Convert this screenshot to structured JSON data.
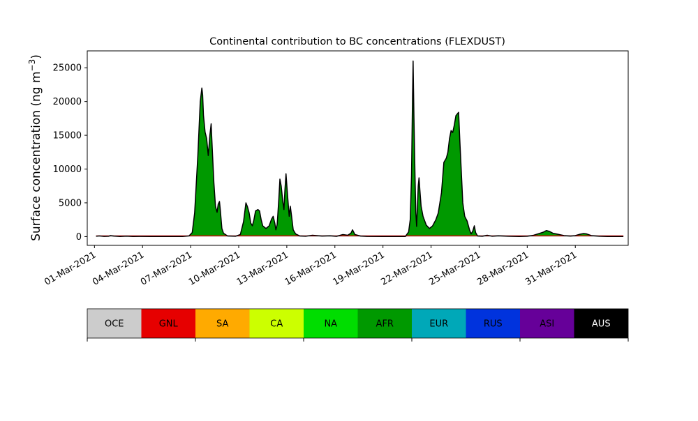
{
  "chart_data": {
    "type": "area",
    "title": "Continental contribution to BC concentrations (FLEXDUST)",
    "ylabel_main": "Surface concentration (ng m",
    "ylabel_exp": "−3",
    "ylabel_close": ")",
    "xlabel": "",
    "ylim": [
      -1300,
      27500
    ],
    "xlim_days": [
      -0.45,
      33.3
    ],
    "y_ticks": [
      0,
      5000,
      10000,
      15000,
      20000,
      25000
    ],
    "y_tick_labels": [
      "0",
      "5000",
      "10000",
      "15000",
      "20000",
      "25000"
    ],
    "x_ticks": [
      0,
      3,
      6,
      9,
      12,
      15,
      18,
      21,
      24,
      27,
      30
    ],
    "x_tick_labels": [
      "01-Mar-2021",
      "04-Mar-2021",
      "07-Mar-2021",
      "10-Mar-2021",
      "13-Mar-2021",
      "16-Mar-2021",
      "19-Mar-2021",
      "22-Mar-2021",
      "25-Mar-2021",
      "28-Mar-2021",
      "31-Mar-2021"
    ],
    "dominant_series": "AFR",
    "series_points": [
      [
        0.1,
        50
      ],
      [
        0.3,
        100
      ],
      [
        0.6,
        30
      ],
      [
        0.9,
        60
      ],
      [
        1.0,
        150
      ],
      [
        1.2,
        80
      ],
      [
        1.6,
        20
      ],
      [
        2.0,
        70
      ],
      [
        2.4,
        20
      ],
      [
        2.8,
        30
      ],
      [
        3.5,
        20
      ],
      [
        4.5,
        10
      ],
      [
        5.5,
        10
      ],
      [
        5.9,
        100
      ],
      [
        6.1,
        600
      ],
      [
        6.25,
        3500
      ],
      [
        6.45,
        12000
      ],
      [
        6.6,
        20000
      ],
      [
        6.7,
        22000
      ],
      [
        6.75,
        21000
      ],
      [
        6.8,
        18000
      ],
      [
        6.9,
        15500
      ],
      [
        7.0,
        14500
      ],
      [
        7.1,
        12000
      ],
      [
        7.2,
        15000
      ],
      [
        7.28,
        16700
      ],
      [
        7.35,
        13000
      ],
      [
        7.45,
        8000
      ],
      [
        7.55,
        4500
      ],
      [
        7.65,
        3600
      ],
      [
        7.72,
        4800
      ],
      [
        7.8,
        5200
      ],
      [
        7.85,
        4000
      ],
      [
        7.95,
        1200
      ],
      [
        8.05,
        500
      ],
      [
        8.3,
        100
      ],
      [
        8.8,
        50
      ],
      [
        9.1,
        300
      ],
      [
        9.3,
        2200
      ],
      [
        9.45,
        5000
      ],
      [
        9.55,
        4400
      ],
      [
        9.65,
        3500
      ],
      [
        9.75,
        2000
      ],
      [
        9.85,
        1600
      ],
      [
        9.95,
        2500
      ],
      [
        10.05,
        3800
      ],
      [
        10.2,
        4000
      ],
      [
        10.3,
        3800
      ],
      [
        10.4,
        2500
      ],
      [
        10.5,
        1600
      ],
      [
        10.7,
        1200
      ],
      [
        10.9,
        1600
      ],
      [
        11.05,
        2600
      ],
      [
        11.15,
        3000
      ],
      [
        11.25,
        2000
      ],
      [
        11.32,
        1000
      ],
      [
        11.4,
        1800
      ],
      [
        11.5,
        5500
      ],
      [
        11.57,
        8500
      ],
      [
        11.65,
        7500
      ],
      [
        11.75,
        5200
      ],
      [
        11.82,
        4000
      ],
      [
        11.88,
        6800
      ],
      [
        11.95,
        9300
      ],
      [
        12.02,
        7000
      ],
      [
        12.1,
        4500
      ],
      [
        12.15,
        3000
      ],
      [
        12.22,
        4500
      ],
      [
        12.3,
        3000
      ],
      [
        12.4,
        1000
      ],
      [
        12.55,
        400
      ],
      [
        12.8,
        100
      ],
      [
        13.2,
        60
      ],
      [
        13.6,
        200
      ],
      [
        14.2,
        80
      ],
      [
        14.7,
        120
      ],
      [
        15.1,
        40
      ],
      [
        15.5,
        300
      ],
      [
        15.8,
        200
      ],
      [
        16.0,
        500
      ],
      [
        16.1,
        1000
      ],
      [
        16.25,
        300
      ],
      [
        16.6,
        80
      ],
      [
        17.0,
        30
      ],
      [
        18.0,
        20
      ],
      [
        18.6,
        10
      ],
      [
        19.4,
        20
      ],
      [
        19.6,
        700
      ],
      [
        19.7,
        2500
      ],
      [
        19.78,
        9000
      ],
      [
        19.84,
        20000
      ],
      [
        19.88,
        26000
      ],
      [
        19.93,
        18000
      ],
      [
        20.0,
        9000
      ],
      [
        20.05,
        3500
      ],
      [
        20.1,
        1500
      ],
      [
        20.14,
        4000
      ],
      [
        20.2,
        7500
      ],
      [
        20.25,
        8700
      ],
      [
        20.3,
        7000
      ],
      [
        20.38,
        4500
      ],
      [
        20.5,
        3000
      ],
      [
        20.7,
        1700
      ],
      [
        20.9,
        1200
      ],
      [
        21.1,
        1600
      ],
      [
        21.3,
        2500
      ],
      [
        21.45,
        3500
      ],
      [
        21.65,
        6500
      ],
      [
        21.8,
        11000
      ],
      [
        21.95,
        11600
      ],
      [
        22.05,
        12500
      ],
      [
        22.15,
        14500
      ],
      [
        22.25,
        15700
      ],
      [
        22.35,
        15400
      ],
      [
        22.45,
        16500
      ],
      [
        22.55,
        17900
      ],
      [
        22.65,
        18200
      ],
      [
        22.72,
        18400
      ],
      [
        22.8,
        14000
      ],
      [
        22.9,
        9000
      ],
      [
        22.98,
        5000
      ],
      [
        23.1,
        3000
      ],
      [
        23.25,
        2300
      ],
      [
        23.4,
        1000
      ],
      [
        23.5,
        400
      ],
      [
        23.6,
        800
      ],
      [
        23.7,
        1600
      ],
      [
        23.78,
        600
      ],
      [
        23.9,
        100
      ],
      [
        24.2,
        50
      ],
      [
        24.5,
        200
      ],
      [
        24.8,
        60
      ],
      [
        25.2,
        120
      ],
      [
        25.8,
        60
      ],
      [
        26.5,
        20
      ],
      [
        27.0,
        50
      ],
      [
        27.4,
        200
      ],
      [
        27.8,
        500
      ],
      [
        28.0,
        650
      ],
      [
        28.2,
        900
      ],
      [
        28.4,
        750
      ],
      [
        28.6,
        500
      ],
      [
        28.8,
        400
      ],
      [
        29.0,
        300
      ],
      [
        29.3,
        150
      ],
      [
        29.7,
        80
      ],
      [
        30.0,
        150
      ],
      [
        30.3,
        350
      ],
      [
        30.5,
        450
      ],
      [
        30.7,
        400
      ],
      [
        31.0,
        150
      ],
      [
        31.5,
        50
      ],
      [
        32.0,
        20
      ],
      [
        32.5,
        10
      ],
      [
        33.0,
        10
      ]
    ],
    "legend": [
      {
        "label": "OCE",
        "color": "#cccccc",
        "text_color": "#000000"
      },
      {
        "label": "GNL",
        "color": "#e60000",
        "text_color": "#000000"
      },
      {
        "label": "SA",
        "color": "#ffaa00",
        "text_color": "#000000"
      },
      {
        "label": "CA",
        "color": "#ccff00",
        "text_color": "#000000"
      },
      {
        "label": "NA",
        "color": "#00dd00",
        "text_color": "#000000"
      },
      {
        "label": "AFR",
        "color": "#009900",
        "text_color": "#000000"
      },
      {
        "label": "EUR",
        "color": "#00a8b8",
        "text_color": "#000000"
      },
      {
        "label": "RUS",
        "color": "#0033dd",
        "text_color": "#000000"
      },
      {
        "label": "ASI",
        "color": "#660099",
        "text_color": "#000000"
      },
      {
        "label": "AUS",
        "color": "#000000",
        "text_color": "#ffffff"
      }
    ],
    "grid": false
  }
}
